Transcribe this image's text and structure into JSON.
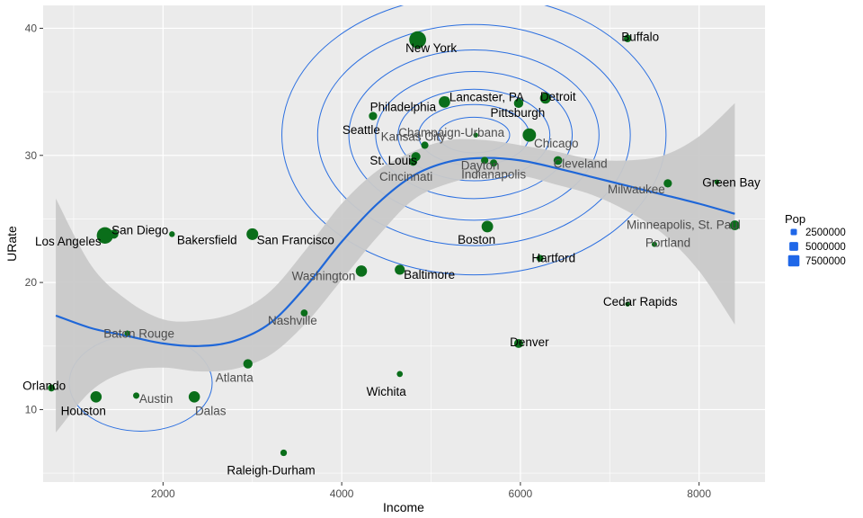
{
  "chart_data": {
    "type": "scatter",
    "xlabel": "Income",
    "ylabel": "URate",
    "xlim": [
      658,
      8738
    ],
    "ylim": [
      4.3,
      41.8
    ],
    "x_ticks": [
      2000,
      4000,
      6000,
      8000
    ],
    "y_ticks": [
      10,
      20,
      30,
      40
    ],
    "grid": true,
    "legend": {
      "title": "Pop",
      "position": "right",
      "entries": [
        {
          "label": "2500000",
          "value": 2500000
        },
        {
          "label": "5000000",
          "value": 5000000
        },
        {
          "label": "7500000",
          "value": 7500000
        }
      ]
    },
    "colors": {
      "panel": "#ebebeb",
      "grid": "#ffffff",
      "points": "#0a6e1a",
      "smooth": "#1f67d8",
      "band": "#c9c9c9",
      "contour": "#2b6fe0",
      "legend_key": "#1f67e8",
      "label_dark": "#000000",
      "label_muted": "#4d4d4d"
    },
    "points": [
      {
        "city": "New York",
        "x": 4850,
        "y": 39.1,
        "pop": 8000000,
        "label_color": "dark"
      },
      {
        "city": "Buffalo",
        "x": 7200,
        "y": 39.2,
        "pop": 900000,
        "label_color": "dark"
      },
      {
        "city": "Philadelphia",
        "x": 5150,
        "y": 34.2,
        "pop": 3000000,
        "label_color": "dark"
      },
      {
        "city": "Lancaster, PA",
        "x": 5170,
        "y": 34.4,
        "pop": 350000,
        "label_color": "dark"
      },
      {
        "city": "Detroit",
        "x": 6280,
        "y": 34.5,
        "pop": 2600000,
        "label_color": "dark"
      },
      {
        "city": "Pittsburgh",
        "x": 5980,
        "y": 34.1,
        "pop": 1700000,
        "label_color": "dark"
      },
      {
        "city": "Seattle",
        "x": 4350,
        "y": 33.1,
        "pop": 1200000,
        "label_color": "dark"
      },
      {
        "city": "Champaign-Urbana",
        "x": 5500,
        "y": 31.6,
        "pop": 160000,
        "label_color": "muted"
      },
      {
        "city": "Chicago",
        "x": 6100,
        "y": 31.6,
        "pop": 4500000,
        "label_color": "muted"
      },
      {
        "city": "Kansas City",
        "x": 4930,
        "y": 30.8,
        "pop": 800000,
        "label_color": "muted"
      },
      {
        "city": "St. Louis",
        "x": 4830,
        "y": 29.9,
        "pop": 1600000,
        "label_color": "dark"
      },
      {
        "city": "Dayton",
        "x": 5700,
        "y": 29.4,
        "pop": 800000,
        "label_color": "muted"
      },
      {
        "city": "Cleveland",
        "x": 6420,
        "y": 29.6,
        "pop": 1400000,
        "label_color": "muted"
      },
      {
        "city": "Cincinnati",
        "x": 4800,
        "y": 29.5,
        "pop": 1100000,
        "label_color": "muted"
      },
      {
        "city": "Indianapolis",
        "x": 5600,
        "y": 29.6,
        "pop": 800000,
        "label_color": "muted"
      },
      {
        "city": "Milwaukee",
        "x": 7650,
        "y": 27.8,
        "pop": 1200000,
        "label_color": "muted"
      },
      {
        "city": "Green Bay",
        "x": 8200,
        "y": 27.9,
        "pop": 180000,
        "label_color": "dark"
      },
      {
        "city": "Los Angeles",
        "x": 1350,
        "y": 23.7,
        "pop": 7500000,
        "label_color": "dark"
      },
      {
        "city": "San Diego",
        "x": 1450,
        "y": 23.8,
        "pop": 1500000,
        "label_color": "dark"
      },
      {
        "city": "Bakersfield",
        "x": 2100,
        "y": 23.8,
        "pop": 350000,
        "label_color": "dark"
      },
      {
        "city": "San Francisco",
        "x": 3000,
        "y": 23.8,
        "pop": 3200000,
        "label_color": "dark"
      },
      {
        "city": "Boston",
        "x": 5630,
        "y": 24.4,
        "pop": 3100000,
        "label_color": "dark"
      },
      {
        "city": "Minneapolis, St. Paul",
        "x": 8400,
        "y": 24.5,
        "pop": 1900000,
        "label_color": "muted"
      },
      {
        "city": "Portland",
        "x": 7500,
        "y": 23.0,
        "pop": 250000,
        "label_color": "muted"
      },
      {
        "city": "Hartford",
        "x": 6220,
        "y": 21.9,
        "pop": 700000,
        "label_color": "dark"
      },
      {
        "city": "Washington",
        "x": 4220,
        "y": 20.9,
        "pop": 2900000,
        "label_color": "muted"
      },
      {
        "city": "Baltimore",
        "x": 4650,
        "y": 21.0,
        "pop": 2100000,
        "label_color": "dark"
      },
      {
        "city": "Cedar Rapids",
        "x": 7200,
        "y": 18.3,
        "pop": 160000,
        "label_color": "dark"
      },
      {
        "city": "Nashville",
        "x": 3580,
        "y": 17.6,
        "pop": 700000,
        "label_color": "muted"
      },
      {
        "city": "Baton Rouge",
        "x": 1600,
        "y": 16.0,
        "pop": 300000,
        "label_color": "muted"
      },
      {
        "city": "Denver",
        "x": 5980,
        "y": 15.2,
        "pop": 1500000,
        "label_color": "dark"
      },
      {
        "city": "Atlanta",
        "x": 2950,
        "y": 13.6,
        "pop": 1700000,
        "label_color": "muted"
      },
      {
        "city": "Wichita",
        "x": 4650,
        "y": 12.8,
        "pop": 400000,
        "label_color": "dark"
      },
      {
        "city": "Orlando",
        "x": 750,
        "y": 11.7,
        "pop": 700000,
        "label_color": "dark"
      },
      {
        "city": "Houston",
        "x": 1250,
        "y": 11.0,
        "pop": 2900000,
        "label_color": "dark"
      },
      {
        "city": "Austin",
        "x": 1700,
        "y": 11.1,
        "pop": 500000,
        "label_color": "muted"
      },
      {
        "city": "Dalas",
        "x": 2350,
        "y": 11.0,
        "pop": 2900000,
        "label_color": "muted"
      },
      {
        "city": "Raleigh-Durham",
        "x": 3350,
        "y": 6.6,
        "pop": 550000,
        "label_color": "dark"
      }
    ],
    "smooth_curve": {
      "x": [
        800,
        1200,
        1600,
        2000,
        2400,
        2800,
        3200,
        3600,
        4000,
        4400,
        4800,
        5200,
        5600,
        6000,
        6400,
        6800,
        7200,
        7600,
        8000,
        8400
      ],
      "y": [
        17.4,
        16.4,
        15.8,
        15.2,
        15.0,
        15.4,
        16.8,
        19.7,
        23.2,
        26.2,
        28.4,
        29.5,
        29.8,
        29.6,
        29.0,
        28.3,
        27.6,
        26.9,
        26.2,
        25.4
      ],
      "ci_low": [
        8.2,
        11.5,
        13.0,
        13.3,
        13.0,
        13.2,
        14.3,
        16.8,
        20.2,
        23.6,
        26.5,
        27.8,
        28.4,
        28.4,
        27.7,
        26.9,
        25.6,
        23.8,
        20.9,
        16.7
      ],
      "ci_high": [
        26.6,
        21.3,
        18.6,
        17.1,
        17.0,
        17.6,
        19.3,
        22.6,
        26.2,
        28.8,
        30.3,
        31.2,
        31.2,
        30.8,
        30.3,
        29.7,
        29.6,
        30.0,
        31.5,
        34.1
      ]
    },
    "density_contours": {
      "center": [
        5480,
        31.6
      ],
      "levels": [
        {
          "rx": 400,
          "ry": 1.4
        },
        {
          "rx": 620,
          "ry": 2.4
        },
        {
          "rx": 850,
          "ry": 3.6
        },
        {
          "rx": 1100,
          "ry": 5.0
        },
        {
          "rx": 1400,
          "ry": 6.7
        },
        {
          "rx": 1750,
          "ry": 8.7
        },
        {
          "rx": 2150,
          "ry": 11.0
        }
      ],
      "secondary_center": [
        1750,
        12.1
      ],
      "secondary_levels": [
        {
          "rx": 800,
          "ry": 3.8
        }
      ]
    }
  }
}
